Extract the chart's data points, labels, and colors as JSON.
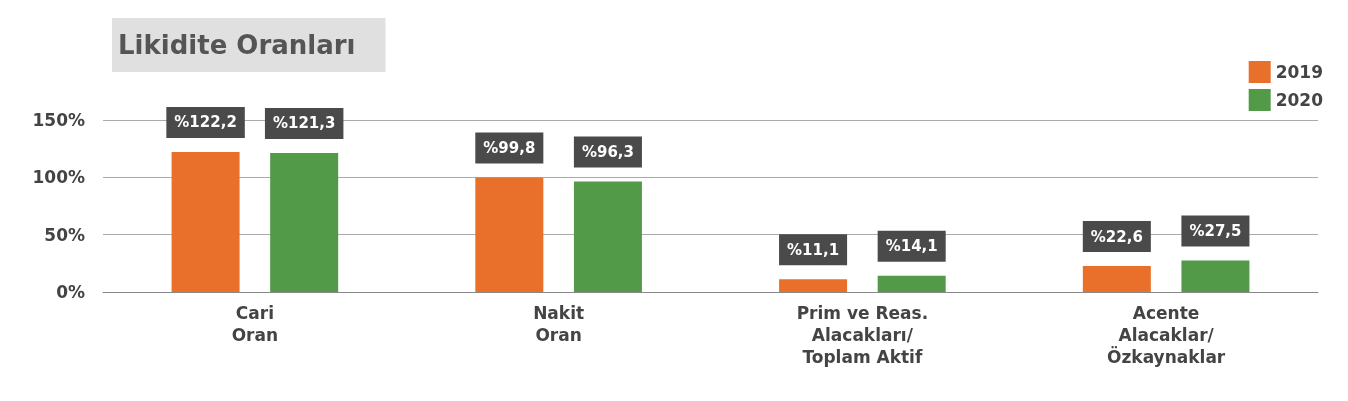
{
  "chart_data": {
    "type": "bar",
    "title": "Likidite Oranları",
    "categories": [
      "Cari\nOran",
      "Nakit\nOran",
      "Prim ve Reas.\nAlacakları/\nToplam Aktif",
      "Acente\nAlacaklar/\nÖzkaynaklar"
    ],
    "series": [
      {
        "name": "2019",
        "color": "#e8702a",
        "values": [
          122.2,
          99.8,
          11.1,
          22.6
        ],
        "value_labels": [
          "%122,2",
          "%99,8",
          "%11,1",
          "%22,6"
        ]
      },
      {
        "name": "2020",
        "color": "#529a48",
        "values": [
          121.3,
          96.3,
          14.1,
          27.5
        ],
        "value_labels": [
          "%121,3",
          "%96,3",
          "%14,1",
          "%27,5"
        ]
      }
    ],
    "ylim": [
      0,
      150
    ],
    "yticks": [
      {
        "value": 0,
        "label": "0%"
      },
      {
        "value": 50,
        "label": "50%"
      },
      {
        "value": 100,
        "label": "100%"
      },
      {
        "value": 150,
        "label": "150%"
      }
    ],
    "grid": "y",
    "legend": "top right"
  }
}
